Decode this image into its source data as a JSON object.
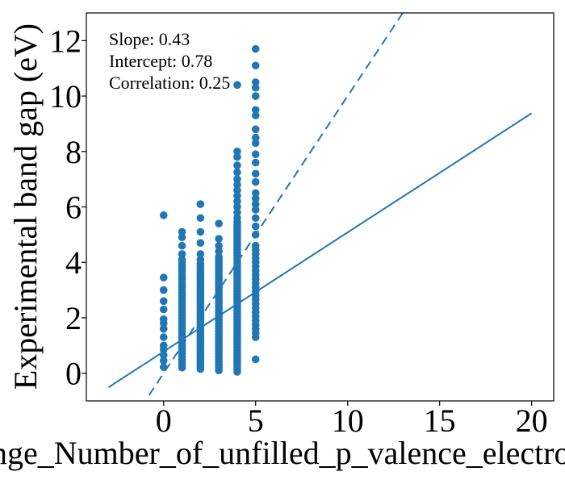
{
  "chart_data": {
    "type": "scatter",
    "xlabel": "range_Number_of_unfilled_p_valence_electrons",
    "ylabel": "Experimental band gap (eV)",
    "xlim": [
      -4.2,
      21.2
    ],
    "ylim": [
      -1.0,
      13.0
    ],
    "xticks": [
      0,
      5,
      10,
      15,
      20
    ],
    "yticks": [
      0,
      2,
      4,
      6,
      8,
      10,
      12
    ],
    "grid": false,
    "color": "#1f77b4",
    "annotations": [
      "Slope: 0.43",
      "Intercept: 0.78",
      "Correlation: 0.25"
    ],
    "fit_line": {
      "style": "solid",
      "slope": 0.43,
      "intercept": 0.78,
      "x_range": [
        -3,
        20
      ]
    },
    "identity_line": {
      "style": "dashed",
      "slope": 1.0,
      "intercept": 0.0,
      "x_range": [
        -0.8,
        13
      ]
    },
    "series": [
      {
        "x": 0,
        "y": [
          0.22,
          0.45,
          0.65,
          0.85,
          1.0,
          1.3,
          1.6,
          1.8,
          1.95,
          2.3,
          2.6,
          3.0,
          3.45,
          5.7
        ]
      },
      {
        "x": 1,
        "y": [
          0.2,
          0.3,
          0.4,
          0.5,
          0.6,
          0.7,
          0.8,
          0.9,
          1.0,
          1.1,
          1.2,
          1.3,
          1.4,
          1.5,
          1.6,
          1.7,
          1.8,
          1.9,
          2.0,
          2.1,
          2.2,
          2.3,
          2.4,
          2.5,
          2.6,
          2.7,
          2.8,
          2.9,
          3.0,
          3.1,
          3.2,
          3.3,
          3.4,
          3.5,
          3.6,
          3.7,
          3.8,
          3.9,
          4.0,
          4.1,
          4.3,
          4.6,
          4.9,
          5.1
        ]
      },
      {
        "x": 2,
        "y": [
          0.15,
          0.25,
          0.35,
          0.45,
          0.55,
          0.65,
          0.75,
          0.85,
          0.95,
          1.05,
          1.15,
          1.25,
          1.35,
          1.45,
          1.55,
          1.65,
          1.75,
          1.85,
          1.95,
          2.05,
          2.15,
          2.25,
          2.35,
          2.45,
          2.55,
          2.65,
          2.75,
          2.85,
          2.95,
          3.05,
          3.15,
          3.25,
          3.35,
          3.45,
          3.55,
          3.65,
          3.75,
          3.85,
          3.95,
          4.1,
          4.3,
          4.7,
          5.1,
          5.6,
          6.1
        ]
      },
      {
        "x": 3,
        "y": [
          0.1,
          0.2,
          0.3,
          0.4,
          0.5,
          0.6,
          0.7,
          0.8,
          0.9,
          1.0,
          1.1,
          1.2,
          1.3,
          1.4,
          1.5,
          1.6,
          1.7,
          1.8,
          1.9,
          2.0,
          2.1,
          2.2,
          2.3,
          2.4,
          2.5,
          2.6,
          2.7,
          2.8,
          2.9,
          3.0,
          3.1,
          3.2,
          3.3,
          3.4,
          3.5,
          3.6,
          3.7,
          3.8,
          3.9,
          4.0,
          4.1,
          4.2,
          4.4,
          4.6,
          4.85,
          5.4
        ]
      },
      {
        "x": 4,
        "y": [
          0.05,
          0.15,
          0.25,
          0.35,
          0.45,
          0.55,
          0.65,
          0.75,
          0.85,
          0.95,
          1.05,
          1.15,
          1.25,
          1.35,
          1.45,
          1.55,
          1.65,
          1.75,
          1.85,
          1.95,
          2.05,
          2.15,
          2.25,
          2.35,
          2.45,
          2.55,
          2.65,
          2.75,
          2.85,
          2.95,
          3.05,
          3.15,
          3.25,
          3.35,
          3.45,
          3.55,
          3.65,
          3.75,
          3.85,
          3.95,
          4.05,
          4.15,
          4.25,
          4.35,
          4.45,
          4.55,
          4.65,
          4.75,
          4.85,
          4.95,
          5.05,
          5.15,
          5.25,
          5.35,
          5.45,
          5.6,
          5.8,
          6.0,
          6.2,
          6.4,
          6.6,
          6.8,
          7.0,
          7.25,
          7.5,
          7.8,
          8.0,
          10.4
        ]
      },
      {
        "x": 5,
        "y": [
          0.5,
          1.3,
          1.45,
          1.6,
          1.75,
          1.9,
          2.05,
          2.2,
          2.35,
          2.5,
          2.65,
          2.8,
          2.95,
          3.1,
          3.25,
          3.4,
          3.55,
          3.7,
          3.85,
          4.0,
          4.15,
          4.3,
          4.45,
          4.6,
          5.0,
          5.3,
          5.6,
          5.9,
          6.1,
          6.3,
          6.5,
          6.9,
          7.2,
          7.6,
          7.9,
          8.3,
          8.5,
          8.8,
          9.3,
          9.5,
          10.0,
          10.3,
          10.5,
          11.1,
          11.7
        ]
      }
    ]
  }
}
